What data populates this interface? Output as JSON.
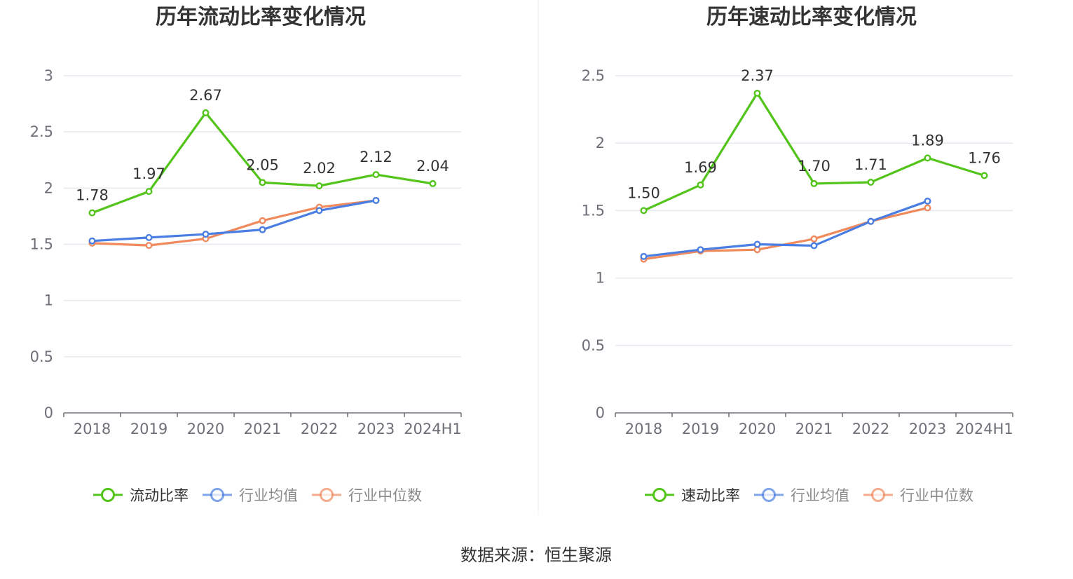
{
  "source": "数据来源：恒生聚源",
  "colors": {
    "main": "#52c41a",
    "avg": "#4a7ee2",
    "median": "#f08a5d",
    "grid": "#e6e8ef",
    "axis": "#6e7079"
  },
  "chart_data": [
    {
      "type": "line",
      "title": "历年流动比率变化情况",
      "categories": [
        "2018",
        "2019",
        "2020",
        "2021",
        "2022",
        "2023",
        "2024H1"
      ],
      "ylim": [
        0,
        3
      ],
      "yticks": [
        "0",
        "0.5",
        "1",
        "1.5",
        "2",
        "2.5",
        "3"
      ],
      "grid": true,
      "legend_position": "bottom",
      "series": [
        {
          "name": "流动比率",
          "values": [
            1.78,
            1.97,
            2.67,
            2.05,
            2.02,
            2.12,
            2.04
          ],
          "labels": [
            "1.78",
            "1.97",
            "2.67",
            "2.05",
            "2.02",
            "2.12",
            "2.04"
          ]
        },
        {
          "name": "行业均值",
          "values": [
            1.53,
            1.56,
            1.59,
            1.63,
            1.8,
            1.89,
            null
          ]
        },
        {
          "name": "行业中位数",
          "values": [
            1.51,
            1.49,
            1.55,
            1.71,
            1.83,
            1.89,
            null
          ]
        }
      ]
    },
    {
      "type": "line",
      "title": "历年速动比率变化情况",
      "categories": [
        "2018",
        "2019",
        "2020",
        "2021",
        "2022",
        "2023",
        "2024H1"
      ],
      "ylim": [
        0,
        2.5
      ],
      "yticks": [
        "0",
        "0.5",
        "1",
        "1.5",
        "2",
        "2.5"
      ],
      "grid": true,
      "legend_position": "bottom",
      "series": [
        {
          "name": "速动比率",
          "values": [
            1.5,
            1.69,
            2.37,
            1.7,
            1.71,
            1.89,
            1.76
          ],
          "labels": [
            "1.50",
            "1.69",
            "2.37",
            "1.70",
            "1.71",
            "1.89",
            "1.76"
          ]
        },
        {
          "name": "行业均值",
          "values": [
            1.16,
            1.21,
            1.25,
            1.24,
            1.42,
            1.57,
            null
          ]
        },
        {
          "name": "行业中位数",
          "values": [
            1.14,
            1.2,
            1.21,
            1.29,
            1.42,
            1.52,
            null
          ]
        }
      ]
    }
  ]
}
